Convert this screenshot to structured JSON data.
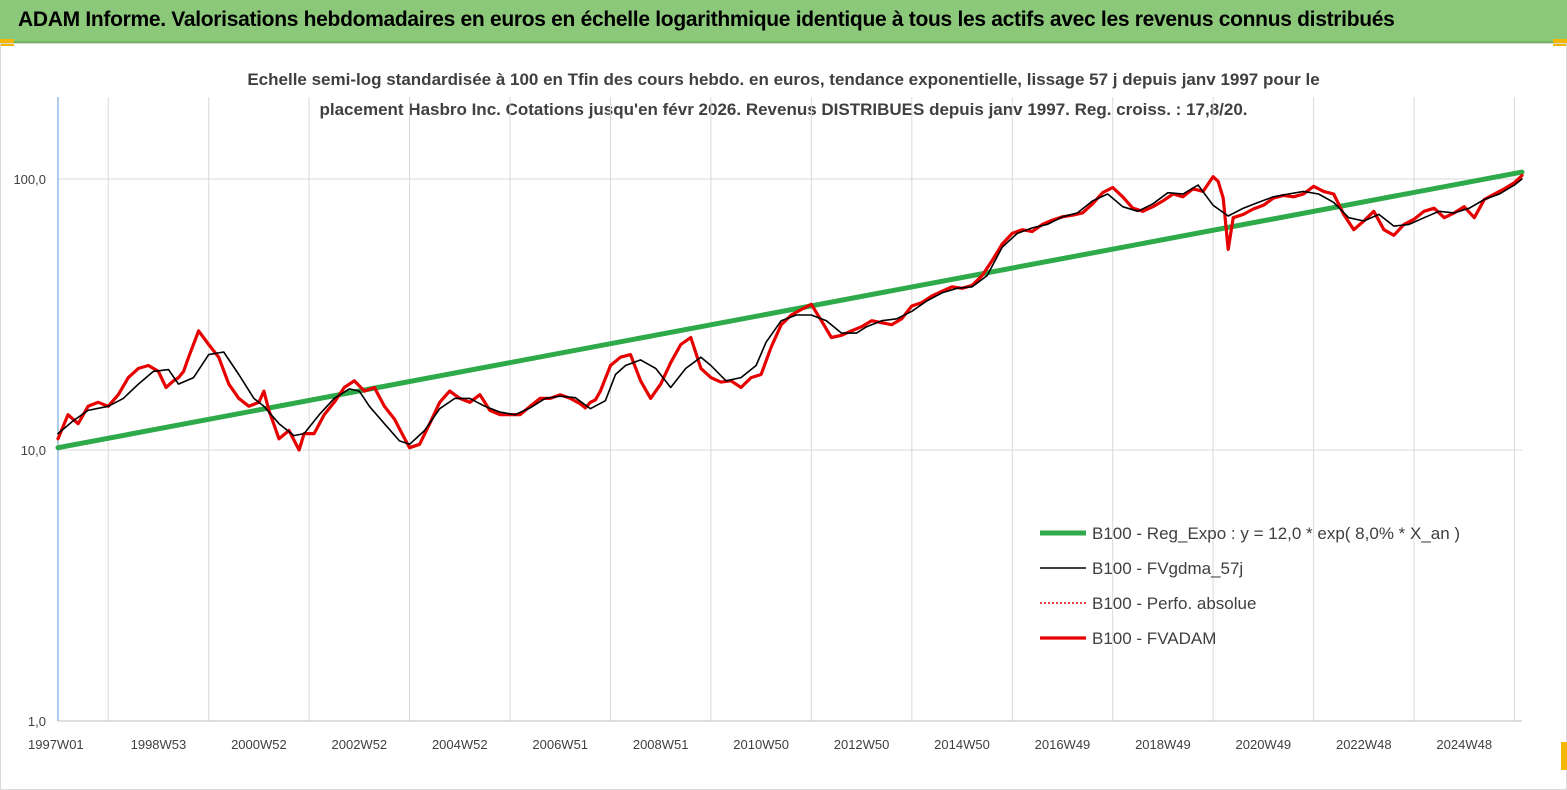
{
  "banner": {
    "title": "ADAM Informe. Valorisations hebdomadaires en euros en échelle logarithmique identique à tous les actifs avec les revenus connus distribués"
  },
  "colors": {
    "banner_bg": "#8bc87a",
    "corner_accent": "#f2b705",
    "regression": "#2eaa4a",
    "fvgdma": "#000000",
    "perfo": "#e00000",
    "fvadam": "#e60000",
    "grid": "#d9d9d9"
  },
  "chart_data": {
    "type": "line",
    "title_line1": "Echelle semi-log standardisée à 100 en Tfin des cours hebdo. en euros, tendance exponentielle, lissage 57 j depuis janv 1997 pour le",
    "title_line2": "placement Hasbro Inc. Cotations jusqu'en févr 2026. Revenus DISTRIBUES depuis janv 1997. Reg. croiss. : 17,8/20.",
    "y_scale": "log",
    "ylim": [
      1,
      180
    ],
    "y_ticks": [
      {
        "value": 1,
        "label": "1,0"
      },
      {
        "value": 10,
        "label": "10,0"
      },
      {
        "value": 100,
        "label": "100,0"
      }
    ],
    "x_range_years": [
      1997.0,
      2026.15
    ],
    "x_ticks": [
      {
        "year": 1997.0,
        "label": "1997W01"
      },
      {
        "year": 1999.0,
        "label": "1998W53"
      },
      {
        "year": 2001.0,
        "label": "2000W52"
      },
      {
        "year": 2003.0,
        "label": "2002W52"
      },
      {
        "year": 2005.0,
        "label": "2004W52"
      },
      {
        "year": 2007.0,
        "label": "2006W51"
      },
      {
        "year": 2009.0,
        "label": "2008W51"
      },
      {
        "year": 2011.0,
        "label": "2010W50"
      },
      {
        "year": 2013.0,
        "label": "2012W50"
      },
      {
        "year": 2015.0,
        "label": "2014W50"
      },
      {
        "year": 2017.0,
        "label": "2016W49"
      },
      {
        "year": 2019.0,
        "label": "2018W49"
      },
      {
        "year": 2021.0,
        "label": "2020W49"
      },
      {
        "year": 2023.0,
        "label": "2022W48"
      },
      {
        "year": 2025.0,
        "label": "2024W48"
      }
    ],
    "grid": true,
    "legend_position": "bottom-right",
    "series": [
      {
        "name": "B100 - Reg_Expo : y = 12,0 * exp( 8,0% *  X_an )",
        "style": "thick-green",
        "x": [
          1997.0,
          2026.15
        ],
        "y": [
          10.2,
          106
        ]
      },
      {
        "name": "B100 - FVgdma_57j",
        "style": "thin-black",
        "x": [
          1997.0,
          1997.3,
          1997.6,
          1998.0,
          1998.3,
          1998.6,
          1998.9,
          1999.2,
          1999.4,
          1999.7,
          2000.0,
          2000.3,
          2000.6,
          2000.9,
          2001.1,
          2001.4,
          2001.7,
          2001.9,
          2002.2,
          2002.5,
          2002.8,
          2003.0,
          2003.2,
          2003.5,
          2003.8,
          2004.0,
          2004.3,
          2004.6,
          2004.9,
          2005.2,
          2005.5,
          2005.8,
          2006.1,
          2006.4,
          2006.7,
          2007.0,
          2007.3,
          2007.6,
          2007.9,
          2008.1,
          2008.3,
          2008.6,
          2008.9,
          2009.2,
          2009.5,
          2009.8,
          2010.0,
          2010.3,
          2010.6,
          2010.9,
          2011.1,
          2011.4,
          2011.7,
          2012.0,
          2012.3,
          2012.6,
          2012.9,
          2013.1,
          2013.4,
          2013.7,
          2014.0,
          2014.3,
          2014.6,
          2014.9,
          2015.2,
          2015.5,
          2015.8,
          2016.1,
          2016.4,
          2016.7,
          2017.0,
          2017.3,
          2017.6,
          2017.9,
          2018.2,
          2018.5,
          2018.8,
          2019.1,
          2019.4,
          2019.7,
          2020.0,
          2020.3,
          2020.6,
          2020.9,
          2021.2,
          2021.5,
          2021.8,
          2022.1,
          2022.4,
          2022.7,
          2023.0,
          2023.3,
          2023.6,
          2023.9,
          2024.2,
          2024.5,
          2024.8,
          2025.1,
          2025.4,
          2025.7,
          2026.0,
          2026.15
        ],
        "y": [
          11.5,
          12.8,
          14.0,
          14.5,
          15.5,
          17.5,
          19.5,
          19.8,
          17.5,
          18.5,
          22.5,
          23.0,
          19.0,
          15.5,
          14.5,
          12.5,
          11.3,
          11.5,
          13.5,
          15.5,
          16.8,
          16.5,
          14.5,
          12.5,
          10.8,
          10.5,
          11.8,
          14.2,
          15.5,
          15.5,
          14.5,
          13.8,
          13.5,
          14.3,
          15.5,
          15.8,
          15.6,
          14.2,
          15.2,
          19.0,
          20.5,
          21.5,
          20.0,
          17.0,
          20.0,
          22.0,
          20.5,
          18.0,
          18.5,
          20.5,
          25.0,
          30.0,
          31.5,
          31.5,
          30.0,
          27.0,
          27.0,
          28.5,
          30.0,
          30.5,
          32.5,
          35.5,
          38.0,
          39.5,
          40.0,
          44.0,
          56.0,
          63.0,
          66.0,
          68.0,
          72.5,
          75.0,
          83.0,
          88.0,
          79.0,
          76.0,
          81.0,
          89.0,
          88.0,
          95.0,
          80.0,
          73.0,
          78.0,
          82.0,
          86.0,
          88.0,
          90.0,
          88.0,
          82.0,
          72.0,
          70.0,
          74.0,
          67.0,
          68.0,
          72.0,
          76.0,
          75.0,
          78.0,
          84.0,
          88.0,
          95.0,
          100.0
        ]
      },
      {
        "name": "B100 - Perfo. absolue",
        "style": "dotted-red",
        "x": [],
        "y": []
      },
      {
        "name": "B100 - FVADAM",
        "style": "thick-red",
        "x": [
          1997.0,
          1997.2,
          1997.4,
          1997.6,
          1997.8,
          1998.0,
          1998.2,
          1998.4,
          1998.6,
          1998.8,
          1999.0,
          1999.15,
          1999.3,
          1999.4,
          1999.5,
          1999.6,
          1999.8,
          2000.0,
          2000.2,
          2000.4,
          2000.6,
          2000.8,
          2001.0,
          2001.1,
          2001.2,
          2001.4,
          2001.6,
          2001.8,
          2001.9,
          2002.1,
          2002.3,
          2002.5,
          2002.7,
          2002.9,
          2003.1,
          2003.3,
          2003.5,
          2003.7,
          2003.85,
          2004.0,
          2004.2,
          2004.4,
          2004.6,
          2004.8,
          2005.0,
          2005.2,
          2005.4,
          2005.6,
          2005.8,
          2006.0,
          2006.2,
          2006.4,
          2006.6,
          2006.8,
          2007.0,
          2007.2,
          2007.4,
          2007.5,
          2007.6,
          2007.7,
          2007.8,
          2008.0,
          2008.2,
          2008.4,
          2008.6,
          2008.8,
          2009.0,
          2009.2,
          2009.4,
          2009.6,
          2009.8,
          2010.0,
          2010.2,
          2010.4,
          2010.6,
          2010.8,
          2011.0,
          2011.2,
          2011.4,
          2011.6,
          2011.8,
          2012.0,
          2012.2,
          2012.4,
          2012.6,
          2012.8,
          2013.0,
          2013.2,
          2013.4,
          2013.6,
          2013.8,
          2014.0,
          2014.2,
          2014.4,
          2014.6,
          2014.8,
          2015.0,
          2015.2,
          2015.4,
          2015.6,
          2015.8,
          2016.0,
          2016.2,
          2016.4,
          2016.6,
          2016.8,
          2017.0,
          2017.2,
          2017.4,
          2017.6,
          2017.8,
          2018.0,
          2018.2,
          2018.4,
          2018.6,
          2018.8,
          2019.0,
          2019.2,
          2019.4,
          2019.6,
          2019.8,
          2020.0,
          2020.1,
          2020.2,
          2020.3,
          2020.4,
          2020.6,
          2020.8,
          2021.0,
          2021.2,
          2021.4,
          2021.6,
          2021.8,
          2022.0,
          2022.2,
          2022.4,
          2022.6,
          2022.8,
          2023.0,
          2023.2,
          2023.4,
          2023.6,
          2023.8,
          2024.0,
          2024.2,
          2024.4,
          2024.6,
          2024.8,
          2025.0,
          2025.2,
          2025.4,
          2025.6,
          2025.8,
          2026.0,
          2026.15
        ],
        "y": [
          11.0,
          13.5,
          12.5,
          14.5,
          15.0,
          14.5,
          16.0,
          18.5,
          20.0,
          20.5,
          19.5,
          17.0,
          18.0,
          18.5,
          19.5,
          22.0,
          27.5,
          24.5,
          22.0,
          17.5,
          15.5,
          14.5,
          15.0,
          16.5,
          14.0,
          11.0,
          11.8,
          10.0,
          11.5,
          11.5,
          13.5,
          15.0,
          17.0,
          18.0,
          16.5,
          17.0,
          14.5,
          13.0,
          11.5,
          10.2,
          10.5,
          12.5,
          15.0,
          16.5,
          15.5,
          15.0,
          16.0,
          14.0,
          13.5,
          13.5,
          13.5,
          14.5,
          15.5,
          15.5,
          16.0,
          15.5,
          14.8,
          14.3,
          15.0,
          15.3,
          16.5,
          20.5,
          22.0,
          22.5,
          18.0,
          15.5,
          17.5,
          21.0,
          24.5,
          26.0,
          20.0,
          18.5,
          17.8,
          18.0,
          17.0,
          18.5,
          19.0,
          24.0,
          29.0,
          31.5,
          33.0,
          34.5,
          30.0,
          26.0,
          26.5,
          27.5,
          28.5,
          30.0,
          29.5,
          29.0,
          30.5,
          34.0,
          35.0,
          37.0,
          38.5,
          40.0,
          39.5,
          40.5,
          44.0,
          50.0,
          57.5,
          63.0,
          65.0,
          64.0,
          68.0,
          70.5,
          72.5,
          73.5,
          75.0,
          81.0,
          89.0,
          93.0,
          86.0,
          78.0,
          76.0,
          79.0,
          83.0,
          88.0,
          86.0,
          92.0,
          90.0,
          102.0,
          98.0,
          85.0,
          55.0,
          72.0,
          74.0,
          77.5,
          80.0,
          85.0,
          87.0,
          86.0,
          88.0,
          94.0,
          90.0,
          88.0,
          74.0,
          65.0,
          70.0,
          76.0,
          65.0,
          62.0,
          68.0,
          71.0,
          76.0,
          78.0,
          72.0,
          75.0,
          79.0,
          72.0,
          84.0,
          88.0,
          92.0,
          97.0,
          103.0
        ]
      }
    ]
  }
}
